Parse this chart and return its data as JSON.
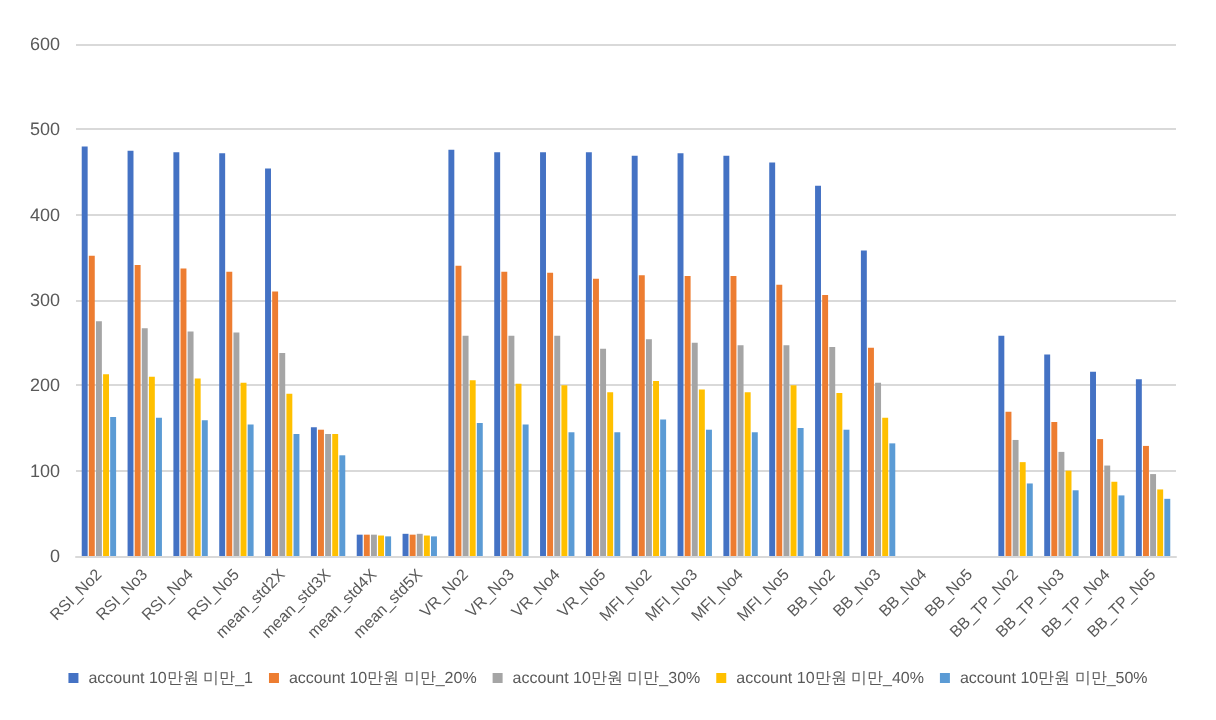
{
  "chart_data": {
    "type": "bar",
    "categories": [
      "RSI_No2",
      "RSI_No3",
      "RSI_No4",
      "RSI_No5",
      "mean_std2X",
      "mean_std3X",
      "mean_std4X",
      "mean_std5X",
      "VR_No2",
      "VR_No3",
      "VR_No4",
      "VR_No5",
      "MFI_No2",
      "MFI_No3",
      "MFI_No4",
      "MFI_No5",
      "BB_No2",
      "BB_No3",
      "BB_No4",
      "BB_No5",
      "BB_TP_No2",
      "BB_TP_No3",
      "BB_TP_No4",
      "BB_TP_No5"
    ],
    "series": [
      {
        "name": "account 10만원 미만_1",
        "color": "#4472c4",
        "values": [
          480,
          475,
          473,
          472,
          454,
          151,
          25,
          26,
          476,
          473,
          473,
          473,
          469,
          472,
          469,
          461,
          434,
          358,
          0,
          0,
          258,
          236,
          216,
          207
        ]
      },
      {
        "name": "account 10만원 미만_20%",
        "color": "#ed7d31",
        "values": [
          352,
          341,
          337,
          333,
          310,
          148,
          25,
          25,
          340,
          333,
          332,
          325,
          329,
          328,
          328,
          318,
          306,
          244,
          0,
          0,
          169,
          157,
          137,
          129
        ]
      },
      {
        "name": "account 10만원 미만_30%",
        "color": "#a5a5a5",
        "values": [
          275,
          267,
          263,
          262,
          238,
          143,
          25,
          26,
          258,
          258,
          258,
          243,
          254,
          250,
          247,
          247,
          245,
          203,
          0,
          0,
          136,
          122,
          106,
          96
        ]
      },
      {
        "name": "account 10만원 미만_40%",
        "color": "#ffc000",
        "values": [
          213,
          210,
          208,
          203,
          190,
          143,
          24,
          24,
          206,
          202,
          200,
          192,
          205,
          195,
          192,
          200,
          191,
          162,
          0,
          0,
          110,
          100,
          87,
          78
        ]
      },
      {
        "name": "account 10만원 미만_50%",
        "color": "#5b9bd5",
        "values": [
          163,
          162,
          159,
          154,
          143,
          118,
          23,
          23,
          156,
          154,
          145,
          145,
          160,
          148,
          145,
          150,
          148,
          132,
          0,
          0,
          85,
          77,
          71,
          67
        ]
      }
    ],
    "ylim": [
      0,
      600
    ],
    "yticks": [
      0,
      100,
      200,
      300,
      400,
      500,
      600
    ],
    "grid": "y",
    "legend": "bottom"
  }
}
